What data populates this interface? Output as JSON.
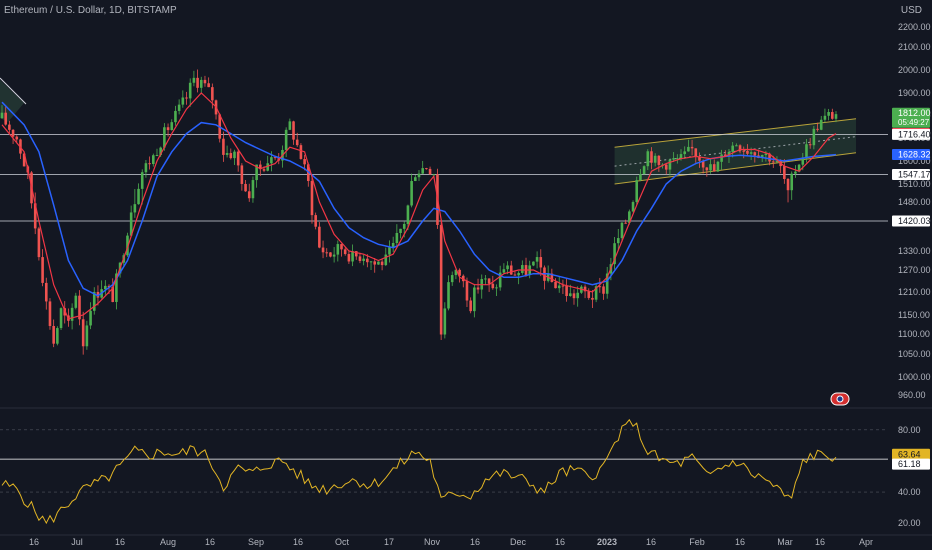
{
  "header": {
    "title": "Ethereum / U.S. Dollar, 1D, BITSTAMP",
    "currency": "USD"
  },
  "colors": {
    "background": "#131722",
    "up": "#26a69a",
    "up_candle": "#4caf50",
    "down_candle": "#ef5350",
    "fast_ma": "#f23645",
    "slow_ma": "#2962ff",
    "rsi": "#e2b525",
    "channel": "#b8a33a",
    "hline": "#d1d4dc"
  },
  "chart_data": [
    {
      "type": "candlestick",
      "title": "Ethereum / U.S. Dollar, 1D, BITSTAMP",
      "ylabel": "USD",
      "ylim": [
        930,
        2280
      ],
      "y_ticks": [
        2200,
        2100,
        2000,
        1900,
        1800,
        1700,
        1600,
        1510,
        1480,
        1420,
        1330,
        1270,
        1210,
        1150,
        1100,
        1050,
        1000,
        960
      ],
      "x_ticks": [
        "16",
        "Jul",
        "16",
        "Aug",
        "16",
        "Sep",
        "16",
        "Oct",
        "17",
        "Nov",
        "16",
        "Dec",
        "16",
        "2023",
        "16",
        "Feb",
        "16",
        "Mar",
        "16",
        "Apr"
      ],
      "horizontal_levels": [
        1716.4,
        1547.17,
        1420.03
      ],
      "price_labels": [
        {
          "value": "1812.00",
          "sub": "05:49:27",
          "color": "#4caf50",
          "price": 1812
        },
        {
          "value": "1720.40",
          "color": "#f23645",
          "price": 1720.4
        },
        {
          "value": "1716.40",
          "color": "#ffffff",
          "price": 1716.4
        },
        {
          "value": "1628.32",
          "color": "#2962ff",
          "price": 1628.32
        },
        {
          "value": "1547.17",
          "color": "#ffffff",
          "price": 1547.17
        },
        {
          "value": "1420.03",
          "color": "#ffffff",
          "price": 1420.03
        }
      ],
      "price_path": [
        [
          0,
          1790
        ],
        [
          4,
          1700
        ],
        [
          8,
          1480
        ],
        [
          12,
          1180
        ],
        [
          14,
          1080
        ],
        [
          16,
          1160
        ],
        [
          18,
          1120
        ],
        [
          20,
          1210
        ],
        [
          22,
          1080
        ],
        [
          24,
          1180
        ],
        [
          27,
          1230
        ],
        [
          30,
          1200
        ],
        [
          32,
          1280
        ],
        [
          35,
          1460
        ],
        [
          38,
          1560
        ],
        [
          41,
          1620
        ],
        [
          44,
          1720
        ],
        [
          47,
          1800
        ],
        [
          50,
          1880
        ],
        [
          52,
          1960
        ],
        [
          54,
          1950
        ],
        [
          57,
          1880
        ],
        [
          60,
          1640
        ],
        [
          63,
          1630
        ],
        [
          66,
          1480
        ],
        [
          69,
          1560
        ],
        [
          72,
          1600
        ],
        [
          75,
          1620
        ],
        [
          78,
          1760
        ],
        [
          81,
          1620
        ],
        [
          84,
          1460
        ],
        [
          86,
          1340
        ],
        [
          89,
          1320
        ],
        [
          92,
          1340
        ],
        [
          95,
          1310
        ],
        [
          98,
          1320
        ],
        [
          101,
          1290
        ],
        [
          104,
          1300
        ],
        [
          106,
          1340
        ],
        [
          109,
          1420
        ],
        [
          112,
          1560
        ],
        [
          115,
          1580
        ],
        [
          117,
          1560
        ],
        [
          118,
          1420
        ],
        [
          119,
          1100
        ],
        [
          121,
          1250
        ],
        [
          124,
          1260
        ],
        [
          127,
          1180
        ],
        [
          130,
          1250
        ],
        [
          133,
          1210
        ],
        [
          136,
          1280
        ],
        [
          139,
          1260
        ],
        [
          142,
          1270
        ],
        [
          145,
          1290
        ],
        [
          148,
          1240
        ],
        [
          151,
          1230
        ],
        [
          154,
          1200
        ],
        [
          157,
          1210
        ],
        [
          160,
          1200
        ],
        [
          163,
          1220
        ],
        [
          166,
          1340
        ],
        [
          169,
          1420
        ],
        [
          172,
          1540
        ],
        [
          175,
          1640
        ],
        [
          178,
          1580
        ],
        [
          181,
          1600
        ],
        [
          184,
          1610
        ],
        [
          187,
          1650
        ],
        [
          190,
          1600
        ],
        [
          193,
          1560
        ],
        [
          196,
          1640
        ],
        [
          199,
          1680
        ],
        [
          202,
          1650
        ],
        [
          205,
          1640
        ],
        [
          208,
          1620
        ],
        [
          211,
          1570
        ],
        [
          213,
          1480
        ],
        [
          215,
          1570
        ],
        [
          218,
          1660
        ],
        [
          221,
          1760
        ],
        [
          224,
          1800
        ],
        [
          226,
          1812
        ]
      ],
      "fast_ma": [
        [
          0,
          1760
        ],
        [
          6,
          1640
        ],
        [
          10,
          1420
        ],
        [
          14,
          1230
        ],
        [
          18,
          1140
        ],
        [
          22,
          1150
        ],
        [
          26,
          1180
        ],
        [
          30,
          1220
        ],
        [
          34,
          1340
        ],
        [
          38,
          1480
        ],
        [
          42,
          1600
        ],
        [
          46,
          1720
        ],
        [
          50,
          1830
        ],
        [
          54,
          1900
        ],
        [
          58,
          1840
        ],
        [
          62,
          1700
        ],
        [
          66,
          1600
        ],
        [
          70,
          1570
        ],
        [
          74,
          1590
        ],
        [
          78,
          1660
        ],
        [
          82,
          1640
        ],
        [
          86,
          1480
        ],
        [
          90,
          1380
        ],
        [
          94,
          1330
        ],
        [
          98,
          1320
        ],
        [
          102,
          1300
        ],
        [
          106,
          1320
        ],
        [
          110,
          1400
        ],
        [
          114,
          1500
        ],
        [
          117,
          1540
        ],
        [
          120,
          1360
        ],
        [
          124,
          1250
        ],
        [
          128,
          1230
        ],
        [
          132,
          1230
        ],
        [
          136,
          1260
        ],
        [
          140,
          1270
        ],
        [
          144,
          1270
        ],
        [
          148,
          1250
        ],
        [
          152,
          1230
        ],
        [
          156,
          1220
        ],
        [
          160,
          1210
        ],
        [
          164,
          1250
        ],
        [
          168,
          1360
        ],
        [
          172,
          1470
        ],
        [
          176,
          1560
        ],
        [
          180,
          1590
        ],
        [
          184,
          1610
        ],
        [
          188,
          1620
        ],
        [
          192,
          1610
        ],
        [
          196,
          1620
        ],
        [
          200,
          1650
        ],
        [
          204,
          1650
        ],
        [
          208,
          1630
        ],
        [
          212,
          1580
        ],
        [
          216,
          1560
        ],
        [
          220,
          1620
        ],
        [
          224,
          1700
        ],
        [
          226,
          1720
        ]
      ],
      "slow_ma": [
        [
          0,
          1860
        ],
        [
          6,
          1760
        ],
        [
          10,
          1640
        ],
        [
          14,
          1470
        ],
        [
          18,
          1300
        ],
        [
          22,
          1220
        ],
        [
          26,
          1200
        ],
        [
          30,
          1230
        ],
        [
          34,
          1300
        ],
        [
          38,
          1420
        ],
        [
          42,
          1540
        ],
        [
          46,
          1640
        ],
        [
          50,
          1720
        ],
        [
          54,
          1770
        ],
        [
          58,
          1760
        ],
        [
          62,
          1720
        ],
        [
          66,
          1680
        ],
        [
          70,
          1650
        ],
        [
          74,
          1620
        ],
        [
          78,
          1600
        ],
        [
          82,
          1570
        ],
        [
          86,
          1520
        ],
        [
          90,
          1460
        ],
        [
          94,
          1400
        ],
        [
          98,
          1370
        ],
        [
          102,
          1350
        ],
        [
          106,
          1340
        ],
        [
          110,
          1360
        ],
        [
          114,
          1420
        ],
        [
          117,
          1460
        ],
        [
          120,
          1450
        ],
        [
          124,
          1390
        ],
        [
          128,
          1320
        ],
        [
          132,
          1270
        ],
        [
          136,
          1250
        ],
        [
          140,
          1250
        ],
        [
          144,
          1260
        ],
        [
          148,
          1260
        ],
        [
          152,
          1250
        ],
        [
          156,
          1240
        ],
        [
          160,
          1230
        ],
        [
          164,
          1240
        ],
        [
          168,
          1300
        ],
        [
          172,
          1390
        ],
        [
          176,
          1460
        ],
        [
          180,
          1510
        ],
        [
          184,
          1560
        ],
        [
          188,
          1590
        ],
        [
          192,
          1610
        ],
        [
          196,
          1620
        ],
        [
          200,
          1625
        ],
        [
          204,
          1620
        ],
        [
          208,
          1610
        ],
        [
          212,
          1600
        ],
        [
          216,
          1610
        ],
        [
          220,
          1620
        ],
        [
          224,
          1625
        ],
        [
          226,
          1628
        ]
      ],
      "channel": {
        "upper": [
          [
            166,
            1660
          ],
          [
            226,
            1760
          ]
        ],
        "lower": [
          [
            166,
            1510
          ],
          [
            226,
            1610
          ]
        ],
        "mid": [
          [
            166,
            1580
          ],
          [
            226,
            1680
          ]
        ]
      }
    },
    {
      "type": "line",
      "title": "",
      "ylim": [
        15,
        95
      ],
      "y_ticks": [
        80,
        60,
        40,
        20
      ],
      "horizontal_levels": [
        61.18
      ],
      "value_labels": [
        {
          "value": "63.64",
          "color": "#e2b525"
        },
        {
          "value": "61.18",
          "color": "#ffffff"
        }
      ],
      "series": [
        {
          "values": [
            [
              0,
              45
            ],
            [
              4,
              42
            ],
            [
              8,
              30
            ],
            [
              12,
              20
            ],
            [
              16,
              28
            ],
            [
              20,
              38
            ],
            [
              24,
              44
            ],
            [
              28,
              48
            ],
            [
              32,
              56
            ],
            [
              36,
              66
            ],
            [
              40,
              64
            ],
            [
              44,
              66
            ],
            [
              48,
              64
            ],
            [
              52,
              68
            ],
            [
              56,
              62
            ],
            [
              60,
              44
            ],
            [
              64,
              55
            ],
            [
              68,
              52
            ],
            [
              72,
              58
            ],
            [
              76,
              60
            ],
            [
              80,
              52
            ],
            [
              84,
              44
            ],
            [
              88,
              42
            ],
            [
              92,
              46
            ],
            [
              96,
              48
            ],
            [
              100,
              44
            ],
            [
              104,
              50
            ],
            [
              108,
              58
            ],
            [
              112,
              66
            ],
            [
              116,
              60
            ],
            [
              119,
              34
            ],
            [
              123,
              40
            ],
            [
              127,
              38
            ],
            [
              131,
              48
            ],
            [
              135,
              52
            ],
            [
              139,
              50
            ],
            [
              143,
              46
            ],
            [
              147,
              40
            ],
            [
              151,
              52
            ],
            [
              155,
              54
            ],
            [
              159,
              50
            ],
            [
              163,
              56
            ],
            [
              167,
              76
            ],
            [
              171,
              86
            ],
            [
              175,
              66
            ],
            [
              179,
              60
            ],
            [
              183,
              58
            ],
            [
              187,
              62
            ],
            [
              191,
              50
            ],
            [
              195,
              56
            ],
            [
              199,
              60
            ],
            [
              203,
              52
            ],
            [
              207,
              48
            ],
            [
              211,
              40
            ],
            [
              214,
              35
            ],
            [
              217,
              60
            ],
            [
              220,
              64
            ],
            [
              224,
              63
            ],
            [
              226,
              63.64
            ]
          ]
        }
      ]
    }
  ]
}
